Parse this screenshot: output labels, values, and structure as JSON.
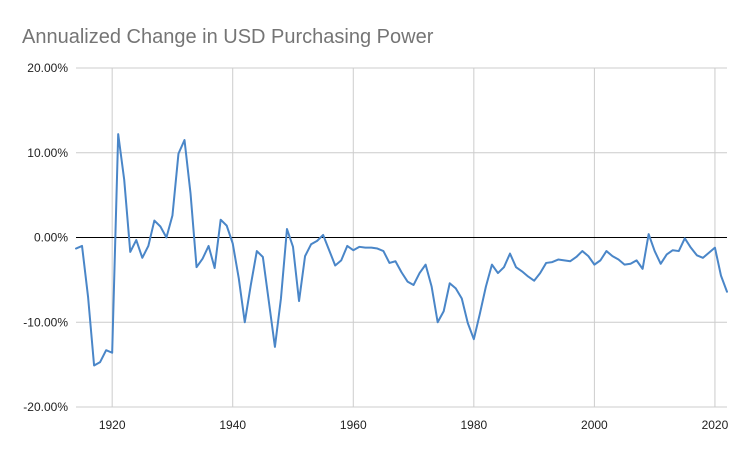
{
  "chart_data": {
    "type": "line",
    "title": "Annualized Change in USD Purchasing Power",
    "xlabel": "",
    "ylabel": "",
    "xlim": [
      1914,
      2022
    ],
    "ylim": [
      -0.2,
      0.2
    ],
    "y_format": "percent_2dp",
    "grid": true,
    "legend": "none",
    "x_ticks": [
      1920,
      1940,
      1960,
      1980,
      2000,
      2020
    ],
    "y_ticks": [
      -0.2,
      -0.1,
      0.0,
      0.1,
      0.2
    ],
    "x_tick_labels": [
      "1920",
      "1940",
      "1960",
      "1980",
      "2000",
      "2020"
    ],
    "y_tick_labels": [
      "-20.00%",
      "-10.00%",
      "0.00%",
      "10.00%",
      "20.00%"
    ],
    "series": [
      {
        "color": "#4a86c8",
        "x": [
          1914,
          1915,
          1916,
          1917,
          1918,
          1919,
          1920,
          1921,
          1922,
          1923,
          1924,
          1925,
          1926,
          1927,
          1928,
          1929,
          1930,
          1931,
          1932,
          1933,
          1934,
          1935,
          1936,
          1937,
          1938,
          1939,
          1940,
          1941,
          1942,
          1943,
          1944,
          1945,
          1946,
          1947,
          1948,
          1949,
          1950,
          1951,
          1952,
          1953,
          1954,
          1955,
          1956,
          1957,
          1958,
          1959,
          1960,
          1961,
          1962,
          1963,
          1964,
          1965,
          1966,
          1967,
          1968,
          1969,
          1970,
          1971,
          1972,
          1973,
          1974,
          1975,
          1976,
          1977,
          1978,
          1979,
          1980,
          1981,
          1982,
          1983,
          1984,
          1985,
          1986,
          1987,
          1988,
          1989,
          1990,
          1991,
          1992,
          1993,
          1994,
          1995,
          1996,
          1997,
          1998,
          1999,
          2000,
          2001,
          2002,
          2003,
          2004,
          2005,
          2006,
          2007,
          2008,
          2009,
          2010,
          2011,
          2012,
          2013,
          2014,
          2015,
          2016,
          2017,
          2018,
          2019,
          2020,
          2021,
          2022
        ],
        "y": [
          -0.013,
          -0.01,
          -0.07,
          -0.151,
          -0.147,
          -0.133,
          -0.136,
          0.122,
          0.068,
          -0.017,
          -0.003,
          -0.024,
          -0.01,
          0.02,
          0.013,
          0.0,
          0.026,
          0.099,
          0.115,
          0.052,
          -0.035,
          -0.025,
          -0.01,
          -0.036,
          0.021,
          0.014,
          -0.007,
          -0.048,
          -0.1,
          -0.056,
          -0.016,
          -0.023,
          -0.076,
          -0.129,
          -0.072,
          0.01,
          -0.011,
          -0.075,
          -0.022,
          -0.008,
          -0.004,
          0.003,
          -0.015,
          -0.033,
          -0.027,
          -0.01,
          -0.015,
          -0.011,
          -0.012,
          -0.012,
          -0.013,
          -0.016,
          -0.03,
          -0.028,
          -0.041,
          -0.052,
          -0.056,
          -0.042,
          -0.032,
          -0.058,
          -0.1,
          -0.087,
          -0.054,
          -0.06,
          -0.072,
          -0.101,
          -0.12,
          -0.09,
          -0.058,
          -0.032,
          -0.042,
          -0.035,
          -0.019,
          -0.035,
          -0.04,
          -0.046,
          -0.051,
          -0.042,
          -0.03,
          -0.029,
          -0.026,
          -0.027,
          -0.028,
          -0.023,
          -0.016,
          -0.022,
          -0.032,
          -0.027,
          -0.016,
          -0.022,
          -0.026,
          -0.032,
          -0.031,
          -0.027,
          -0.037,
          0.004,
          -0.016,
          -0.031,
          -0.02,
          -0.015,
          -0.016,
          -0.001,
          -0.012,
          -0.021,
          -0.024,
          -0.018,
          -0.012,
          -0.045,
          -0.064
        ]
      }
    ]
  }
}
